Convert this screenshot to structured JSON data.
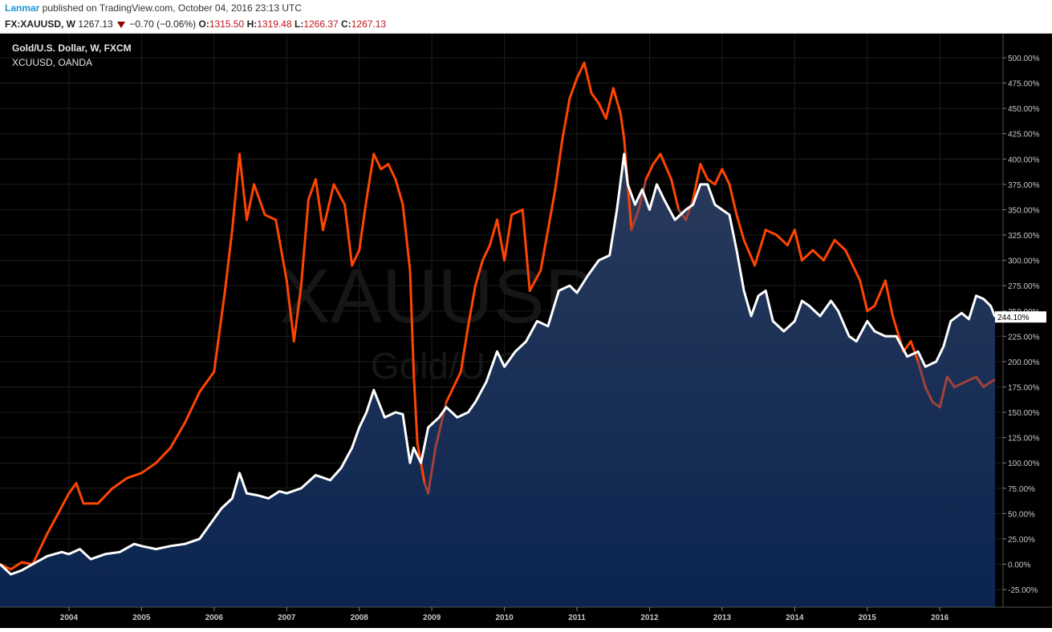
{
  "header": {
    "author": "Lanmar",
    "published_text": " published on TradingView.com, October 04, 2016 23:13 UTC"
  },
  "symbol_bar": {
    "symbol": "FX:XAUUSD, W",
    "last": "1267.13",
    "change": "−0.70 (−0.06%)",
    "open_label": "O:",
    "open": "1315.50",
    "high_label": "H:",
    "high": "1319.48",
    "low_label": "L:",
    "low": "1266.37",
    "close_label": "C:",
    "close": "1267.13",
    "down_color": "#8b0000"
  },
  "legend": {
    "main_series": "Gold/U.S. Dollar, W, FXCM",
    "compare_series": "XCUUSD, OANDA"
  },
  "watermark": {
    "symbol": "XAUUSD, W",
    "description": "Gold/U.S. Dollar"
  },
  "price_marker": "244.10%",
  "colors": {
    "background": "#000000",
    "gold_line": "#ffffff",
    "gold_area_top": "#2a3a5c",
    "gold_area_bottom": "#0b2550",
    "copper_line": "#ff4500",
    "copper_below": "#a0423a",
    "grid": "#1e1e1e",
    "axis_text": "#c8c8c8"
  },
  "chart_data": {
    "type": "area",
    "title": "Gold/U.S. Dollar, W, FXCM",
    "y_unit": "%",
    "ylim": [
      -30,
      510
    ],
    "y_ticks": [
      "500.00%",
      "475.00%",
      "450.00%",
      "425.00%",
      "400.00%",
      "375.00%",
      "350.00%",
      "325.00%",
      "300.00%",
      "275.00%",
      "250.00%",
      "225.00%",
      "200.00%",
      "175.00%",
      "150.00%",
      "125.00%",
      "100.00%",
      "75.00%",
      "50.00%",
      "25.00%",
      "0.00%",
      "-25.00%"
    ],
    "x_ticks": [
      "2004",
      "2005",
      "2006",
      "2007",
      "2008",
      "2009",
      "2010",
      "2011",
      "2012",
      "2013",
      "2014",
      "2015",
      "2016"
    ],
    "xlim": [
      2003.05,
      2016.76
    ],
    "grid": true,
    "series": [
      {
        "name": "Gold/U.S. Dollar, W, FXCM",
        "points": [
          [
            2003.05,
            0
          ],
          [
            2003.2,
            -10
          ],
          [
            2003.35,
            -6
          ],
          [
            2003.5,
            0
          ],
          [
            2003.7,
            8
          ],
          [
            2003.9,
            12
          ],
          [
            2004.0,
            10
          ],
          [
            2004.15,
            15
          ],
          [
            2004.3,
            5
          ],
          [
            2004.5,
            10
          ],
          [
            2004.7,
            12
          ],
          [
            2004.9,
            20
          ],
          [
            2005.0,
            18
          ],
          [
            2005.2,
            15
          ],
          [
            2005.4,
            18
          ],
          [
            2005.6,
            20
          ],
          [
            2005.8,
            25
          ],
          [
            2005.95,
            40
          ],
          [
            2006.1,
            55
          ],
          [
            2006.25,
            65
          ],
          [
            2006.35,
            90
          ],
          [
            2006.45,
            70
          ],
          [
            2006.6,
            68
          ],
          [
            2006.75,
            65
          ],
          [
            2006.9,
            72
          ],
          [
            2007.0,
            70
          ],
          [
            2007.2,
            75
          ],
          [
            2007.4,
            88
          ],
          [
            2007.6,
            83
          ],
          [
            2007.75,
            95
          ],
          [
            2007.9,
            115
          ],
          [
            2008.0,
            135
          ],
          [
            2008.1,
            150
          ],
          [
            2008.2,
            172
          ],
          [
            2008.35,
            145
          ],
          [
            2008.5,
            150
          ],
          [
            2008.6,
            148
          ],
          [
            2008.7,
            100
          ],
          [
            2008.75,
            115
          ],
          [
            2008.85,
            100
          ],
          [
            2008.95,
            135
          ],
          [
            2009.1,
            145
          ],
          [
            2009.2,
            155
          ],
          [
            2009.35,
            145
          ],
          [
            2009.5,
            150
          ],
          [
            2009.6,
            160
          ],
          [
            2009.75,
            180
          ],
          [
            2009.9,
            210
          ],
          [
            2010.0,
            195
          ],
          [
            2010.15,
            210
          ],
          [
            2010.3,
            220
          ],
          [
            2010.45,
            240
          ],
          [
            2010.6,
            235
          ],
          [
            2010.75,
            270
          ],
          [
            2010.9,
            275
          ],
          [
            2011.0,
            268
          ],
          [
            2011.15,
            285
          ],
          [
            2011.3,
            300
          ],
          [
            2011.45,
            305
          ],
          [
            2011.55,
            350
          ],
          [
            2011.65,
            405
          ],
          [
            2011.7,
            375
          ],
          [
            2011.8,
            355
          ],
          [
            2011.9,
            370
          ],
          [
            2012.0,
            350
          ],
          [
            2012.1,
            375
          ],
          [
            2012.2,
            360
          ],
          [
            2012.35,
            340
          ],
          [
            2012.5,
            350
          ],
          [
            2012.6,
            355
          ],
          [
            2012.7,
            375
          ],
          [
            2012.8,
            375
          ],
          [
            2012.9,
            355
          ],
          [
            2013.0,
            350
          ],
          [
            2013.1,
            345
          ],
          [
            2013.2,
            310
          ],
          [
            2013.3,
            270
          ],
          [
            2013.4,
            245
          ],
          [
            2013.5,
            265
          ],
          [
            2013.6,
            270
          ],
          [
            2013.7,
            240
          ],
          [
            2013.85,
            230
          ],
          [
            2014.0,
            240
          ],
          [
            2014.1,
            260
          ],
          [
            2014.2,
            255
          ],
          [
            2014.35,
            245
          ],
          [
            2014.5,
            260
          ],
          [
            2014.6,
            250
          ],
          [
            2014.75,
            225
          ],
          [
            2014.85,
            220
          ],
          [
            2015.0,
            240
          ],
          [
            2015.1,
            230
          ],
          [
            2015.25,
            225
          ],
          [
            2015.4,
            225
          ],
          [
            2015.55,
            205
          ],
          [
            2015.7,
            210
          ],
          [
            2015.8,
            195
          ],
          [
            2015.95,
            200
          ],
          [
            2016.05,
            215
          ],
          [
            2016.15,
            240
          ],
          [
            2016.3,
            248
          ],
          [
            2016.4,
            242
          ],
          [
            2016.5,
            265
          ],
          [
            2016.6,
            262
          ],
          [
            2016.7,
            255
          ],
          [
            2016.76,
            244.1
          ]
        ]
      },
      {
        "name": "XCUUSD, OANDA",
        "points": [
          [
            2003.05,
            0
          ],
          [
            2003.2,
            -5
          ],
          [
            2003.35,
            2
          ],
          [
            2003.5,
            0
          ],
          [
            2003.7,
            30
          ],
          [
            2003.85,
            50
          ],
          [
            2004.0,
            70
          ],
          [
            2004.1,
            80
          ],
          [
            2004.2,
            60
          ],
          [
            2004.4,
            60
          ],
          [
            2004.6,
            75
          ],
          [
            2004.8,
            85
          ],
          [
            2005.0,
            90
          ],
          [
            2005.2,
            100
          ],
          [
            2005.4,
            115
          ],
          [
            2005.6,
            140
          ],
          [
            2005.8,
            170
          ],
          [
            2006.0,
            190
          ],
          [
            2006.15,
            270
          ],
          [
            2006.25,
            330
          ],
          [
            2006.35,
            405
          ],
          [
            2006.45,
            340
          ],
          [
            2006.55,
            375
          ],
          [
            2006.7,
            345
          ],
          [
            2006.85,
            340
          ],
          [
            2007.0,
            280
          ],
          [
            2007.1,
            220
          ],
          [
            2007.2,
            275
          ],
          [
            2007.3,
            360
          ],
          [
            2007.4,
            380
          ],
          [
            2007.5,
            330
          ],
          [
            2007.65,
            375
          ],
          [
            2007.8,
            355
          ],
          [
            2007.9,
            295
          ],
          [
            2008.0,
            310
          ],
          [
            2008.1,
            360
          ],
          [
            2008.2,
            405
          ],
          [
            2008.3,
            390
          ],
          [
            2008.4,
            395
          ],
          [
            2008.5,
            380
          ],
          [
            2008.6,
            355
          ],
          [
            2008.7,
            290
          ],
          [
            2008.75,
            190
          ],
          [
            2008.8,
            120
          ],
          [
            2008.9,
            80
          ],
          [
            2008.95,
            70
          ],
          [
            2009.05,
            115
          ],
          [
            2009.2,
            160
          ],
          [
            2009.4,
            190
          ],
          [
            2009.5,
            235
          ],
          [
            2009.6,
            275
          ],
          [
            2009.7,
            300
          ],
          [
            2009.8,
            315
          ],
          [
            2009.9,
            340
          ],
          [
            2010.0,
            300
          ],
          [
            2010.1,
            345
          ],
          [
            2010.25,
            350
          ],
          [
            2010.35,
            270
          ],
          [
            2010.5,
            290
          ],
          [
            2010.6,
            330
          ],
          [
            2010.7,
            370
          ],
          [
            2010.8,
            420
          ],
          [
            2010.9,
            460
          ],
          [
            2011.0,
            480
          ],
          [
            2011.1,
            495
          ],
          [
            2011.2,
            465
          ],
          [
            2011.3,
            455
          ],
          [
            2011.4,
            440
          ],
          [
            2011.5,
            470
          ],
          [
            2011.6,
            445
          ],
          [
            2011.65,
            420
          ],
          [
            2011.75,
            330
          ],
          [
            2011.85,
            350
          ],
          [
            2011.95,
            380
          ],
          [
            2012.05,
            395
          ],
          [
            2012.15,
            405
          ],
          [
            2012.3,
            380
          ],
          [
            2012.4,
            350
          ],
          [
            2012.5,
            340
          ],
          [
            2012.6,
            360
          ],
          [
            2012.7,
            395
          ],
          [
            2012.8,
            380
          ],
          [
            2012.9,
            375
          ],
          [
            2013.0,
            390
          ],
          [
            2013.1,
            375
          ],
          [
            2013.2,
            345
          ],
          [
            2013.3,
            320
          ],
          [
            2013.45,
            295
          ],
          [
            2013.6,
            330
          ],
          [
            2013.75,
            325
          ],
          [
            2013.9,
            315
          ],
          [
            2014.0,
            330
          ],
          [
            2014.1,
            300
          ],
          [
            2014.25,
            310
          ],
          [
            2014.4,
            300
          ],
          [
            2014.55,
            320
          ],
          [
            2014.7,
            310
          ],
          [
            2014.8,
            295
          ],
          [
            2014.9,
            280
          ],
          [
            2015.0,
            250
          ],
          [
            2015.1,
            255
          ],
          [
            2015.25,
            280
          ],
          [
            2015.35,
            245
          ],
          [
            2015.5,
            210
          ],
          [
            2015.6,
            220
          ],
          [
            2015.7,
            200
          ],
          [
            2015.8,
            175
          ],
          [
            2015.9,
            160
          ],
          [
            2016.0,
            155
          ],
          [
            2016.1,
            185
          ],
          [
            2016.2,
            175
          ],
          [
            2016.35,
            180
          ],
          [
            2016.5,
            185
          ],
          [
            2016.6,
            175
          ],
          [
            2016.7,
            180
          ],
          [
            2016.76,
            182
          ]
        ]
      }
    ]
  }
}
